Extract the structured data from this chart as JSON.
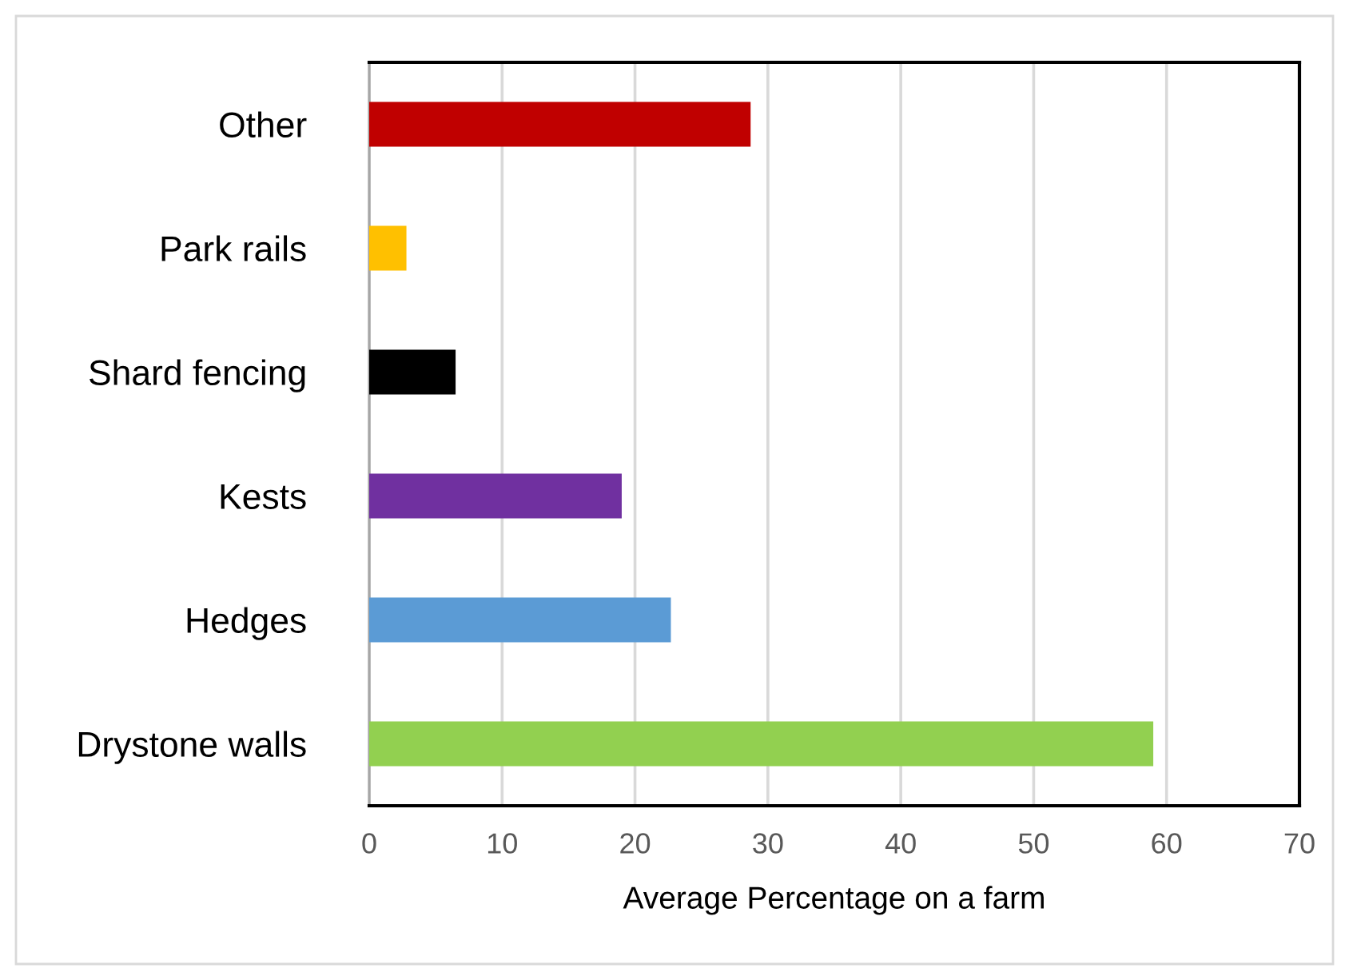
{
  "chart_data": {
    "type": "bar",
    "orientation": "horizontal",
    "xlabel": "Average Percentage on a farm",
    "categories": [
      "Other",
      "Park rails",
      "Shard fencing",
      "Kests",
      "Hedges",
      "Drystone walls"
    ],
    "values": [
      28.7,
      2.8,
      6.5,
      19.0,
      22.7,
      59.0
    ],
    "colors": [
      "#c00000",
      "#ffc000",
      "#000000",
      "#7030a0",
      "#5b9bd5",
      "#92d050"
    ],
    "xlim": [
      0,
      70
    ],
    "xticks": [
      0,
      10,
      20,
      30,
      40,
      50,
      60,
      70
    ],
    "grid": "x",
    "legend": false
  }
}
